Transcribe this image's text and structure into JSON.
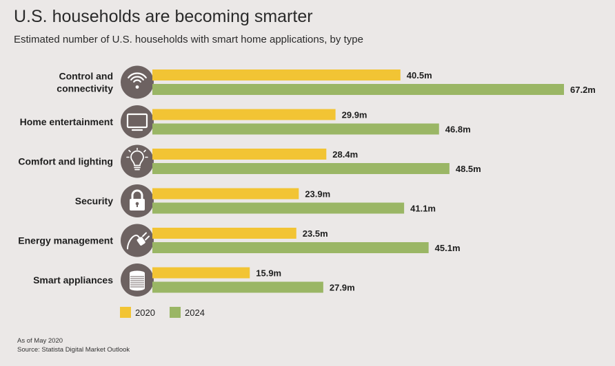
{
  "chart_data": {
    "type": "bar",
    "orientation": "horizontal",
    "title": "U.S. households are becoming smarter",
    "subtitle": "Estimated number of U.S. households with smart home applications, by type",
    "categories": [
      {
        "label_lines": [
          "Control and",
          "connectivity"
        ],
        "icon": "wifi-icon"
      },
      {
        "label_lines": [
          "Home entertainment"
        ],
        "icon": "tv-icon"
      },
      {
        "label_lines": [
          "Comfort and lighting"
        ],
        "icon": "lightbulb-icon"
      },
      {
        "label_lines": [
          "Security"
        ],
        "icon": "lock-icon"
      },
      {
        "label_lines": [
          "Energy management"
        ],
        "icon": "plug-icon"
      },
      {
        "label_lines": [
          "Smart appliances"
        ],
        "icon": "appliance-icon"
      }
    ],
    "series": [
      {
        "name": "2020",
        "color": "#f2c434",
        "values": [
          40.5,
          29.9,
          28.4,
          23.9,
          23.5,
          15.9
        ],
        "labels": [
          "40.5m",
          "29.9m",
          "28.4m",
          "23.9m",
          "23.5m",
          "15.9m"
        ]
      },
      {
        "name": "2024",
        "color": "#9ab665",
        "values": [
          67.2,
          46.8,
          48.5,
          41.1,
          45.1,
          27.9
        ],
        "labels": [
          "67.2m",
          "46.8m",
          "48.5m",
          "41.1m",
          "45.1m",
          "27.9m"
        ]
      }
    ],
    "xlim": [
      0,
      67.2
    ],
    "icon_circle_color": "#6d6261",
    "legend_placement": "bottom-left",
    "grid": false
  },
  "footnote": {
    "date_note": "As of May 2020",
    "source": "Source: Statista Digital Market Outlook"
  }
}
